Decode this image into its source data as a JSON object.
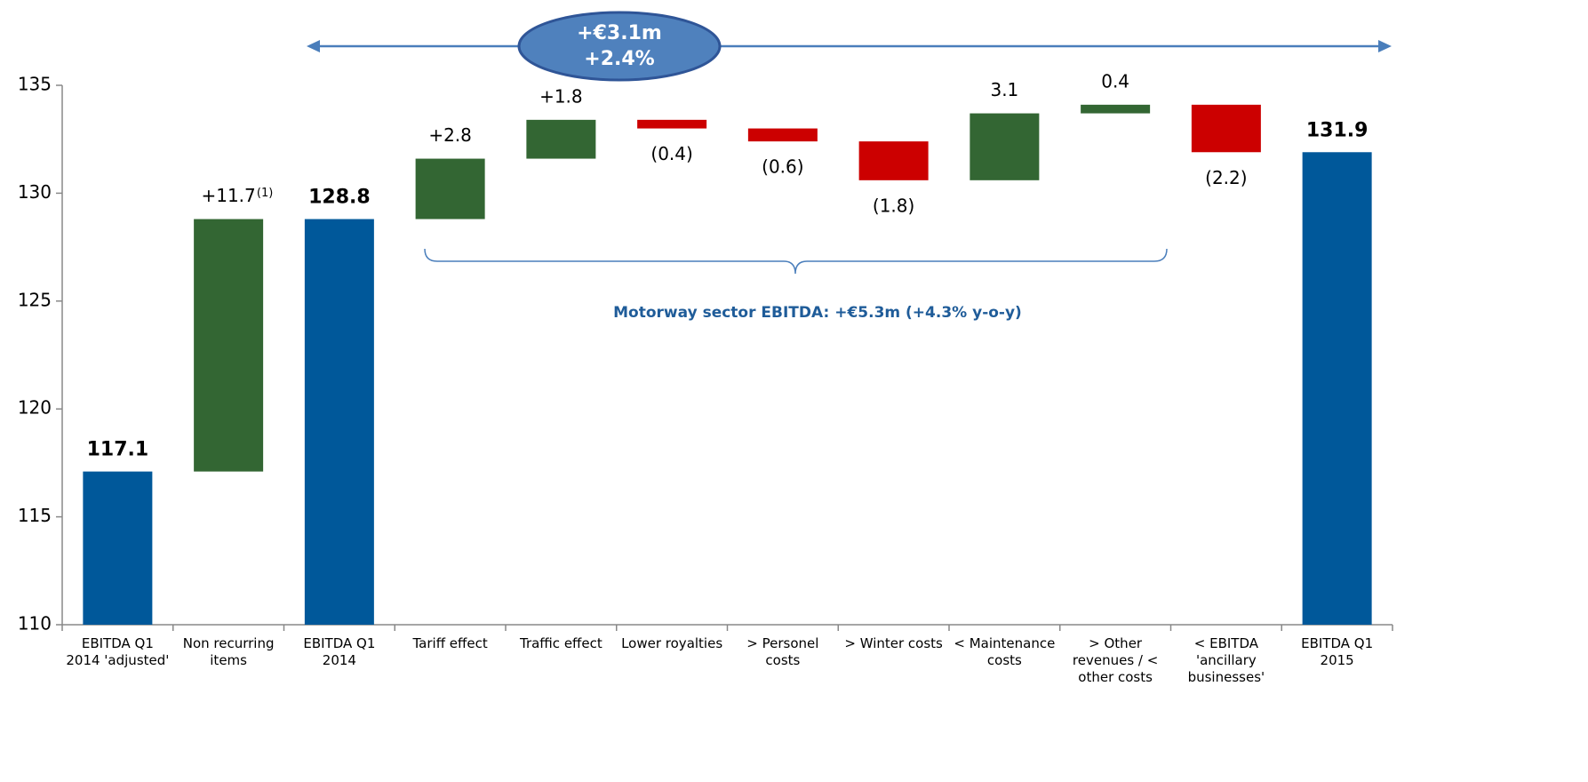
{
  "chart_data": {
    "type": "waterfall",
    "categories": [
      "EBITDA Q1 2014 'adjusted'",
      "Non recurring items",
      "EBITDA Q1 2014",
      "Tariff effect",
      "Traffic effect",
      "Lower royalties",
      "> Personel costs",
      "> Winter costs",
      "< Maintenance costs",
      "> Other revenues / < other costs",
      "< EBITDA 'ancillary businesses'",
      "EBITDA Q1 2015"
    ],
    "values": [
      117.1,
      11.7,
      128.8,
      2.8,
      1.8,
      -0.4,
      -0.6,
      -1.8,
      3.1,
      0.4,
      -2.2,
      131.9
    ],
    "value_labels": [
      "117.1",
      "+11.7",
      "128.8",
      "+2.8",
      "+1.8",
      "(0.4)",
      "(0.6)",
      "(1.8)",
      "3.1",
      "0.4",
      "(2.2)",
      "131.9"
    ],
    "measure": [
      "total",
      "relative",
      "total",
      "relative",
      "relative",
      "relative",
      "relative",
      "relative",
      "relative",
      "relative",
      "relative",
      "total"
    ],
    "colors": {
      "total": "#00589a",
      "increase": "#336633",
      "decrease": "#cc0000"
    },
    "footnote_marker": "(1)",
    "bubble_text": [
      "+€3.1m",
      "+2.4%"
    ],
    "brace_text": "Motorway sector EBITDA: +€5.3m (+4.3% y-o-y)",
    "ylim": [
      110,
      135
    ],
    "yticks": [
      110,
      115,
      120,
      125,
      130,
      135
    ],
    "grid": false
  }
}
